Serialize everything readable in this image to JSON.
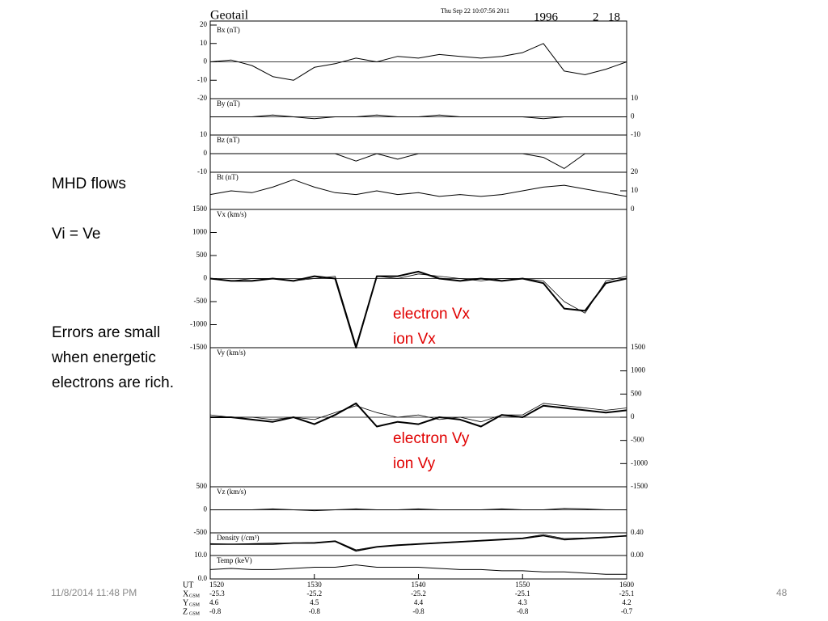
{
  "slide": {
    "notes": [
      "MHD flows",
      "Vi = Ve",
      "Errors are small",
      "when energetic",
      "electrons are rich."
    ],
    "footer_date": "11/8/2014 11:48 PM",
    "page_number": 48,
    "legend_color": "#e00000"
  },
  "plot_header": {
    "mission": "Geotail",
    "timestamp": "Thu Sep 22 10:07:56 2011",
    "year": 1996,
    "month": 2,
    "day": 18
  },
  "orbit": {
    "ut_label": "UT",
    "rows": [
      {
        "label": "X",
        "sub": "GSM",
        "values": [
          -25.3,
          -25.2,
          -25.2,
          -25.1,
          -25.1
        ]
      },
      {
        "label": "Y",
        "sub": "GSM",
        "values": [
          4.6,
          4.5,
          4.4,
          4.3,
          4.2
        ]
      },
      {
        "label": "Z",
        "sub": "GSM",
        "values": [
          -0.8,
          -0.8,
          -0.8,
          -0.8,
          -0.7
        ]
      }
    ]
  },
  "chart_data": [
    {
      "type": "line",
      "ylabel": "Bx (nT)",
      "yaxis": "left",
      "ylim": [
        -20,
        20
      ],
      "yticks": [
        20,
        10,
        0,
        -10,
        -20
      ],
      "xlim": [
        920,
        960
      ],
      "x": [
        920,
        922,
        924,
        926,
        928,
        930,
        932,
        934,
        936,
        938,
        940,
        942,
        944,
        946,
        948,
        950,
        952,
        954,
        956,
        958,
        960
      ],
      "color": "#000000",
      "values": [
        0,
        1,
        -2,
        -8,
        -10,
        -3,
        -1,
        2,
        0,
        3,
        2,
        4,
        3,
        2,
        3,
        5,
        10,
        -5,
        -7,
        -4,
        0
      ]
    },
    {
      "type": "line",
      "ylabel": "By (nT)",
      "yaxis": "right",
      "ylim": [
        -10,
        10
      ],
      "yticks": [
        10,
        0,
        -10
      ],
      "xlim": [
        920,
        960
      ],
      "x": [
        920,
        922,
        924,
        926,
        928,
        930,
        932,
        934,
        936,
        938,
        940,
        942,
        944,
        946,
        948,
        950,
        952,
        954,
        956,
        958,
        960
      ],
      "color": "#000000",
      "values": [
        0,
        0,
        0,
        1,
        0,
        -1,
        0,
        0,
        1,
        0,
        0,
        1,
        0,
        0,
        0,
        0,
        -1,
        0,
        0,
        0,
        0
      ]
    },
    {
      "type": "line",
      "ylabel": "Bz (nT)",
      "yaxis": "left",
      "ylim": [
        -10,
        10
      ],
      "yticks": [
        10,
        0,
        -10
      ],
      "xlim": [
        920,
        960
      ],
      "x": [
        920,
        922,
        924,
        926,
        928,
        930,
        932,
        934,
        936,
        938,
        940,
        942,
        944,
        946,
        948,
        950,
        952,
        954,
        956,
        958,
        960
      ],
      "color": "#000000",
      "values": [
        0,
        0,
        0,
        0,
        0,
        0,
        0,
        -4,
        0,
        -3,
        0,
        0,
        0,
        0,
        0,
        0,
        -2,
        -8,
        0,
        0,
        0
      ]
    },
    {
      "type": "line",
      "ylabel": "Bt (nT)",
      "yaxis": "right",
      "ylim": [
        0,
        20
      ],
      "yticks": [
        20,
        10,
        0
      ],
      "xlim": [
        920,
        960
      ],
      "x": [
        920,
        922,
        924,
        926,
        928,
        930,
        932,
        934,
        936,
        938,
        940,
        942,
        944,
        946,
        948,
        950,
        952,
        954,
        956,
        958,
        960
      ],
      "color": "#000000",
      "values": [
        8,
        10,
        9,
        12,
        16,
        12,
        9,
        8,
        10,
        8,
        9,
        7,
        8,
        7,
        8,
        10,
        12,
        13,
        11,
        9,
        7
      ]
    },
    {
      "type": "line",
      "ylabel": "Vx (km/s)",
      "yaxis": "left",
      "ylim": [
        -1500,
        1500
      ],
      "yticks": [
        1500,
        1000,
        500,
        0,
        -500,
        -1000,
        -1500
      ],
      "xlim": [
        920,
        960
      ],
      "x": [
        920,
        922,
        924,
        926,
        928,
        930,
        932,
        934,
        936,
        938,
        940,
        942,
        944,
        946,
        948,
        950,
        952,
        954,
        956,
        958,
        960
      ],
      "series": [
        {
          "name": "electron Vx",
          "color": "#000000",
          "line_width": 2,
          "values": [
            0,
            -50,
            -50,
            0,
            -50,
            50,
            0,
            -1500,
            50,
            50,
            150,
            0,
            -50,
            0,
            -50,
            0,
            -100,
            -650,
            -700,
            -100,
            0
          ]
        },
        {
          "name": "ion Vx",
          "color": "#000000",
          "line_width": 0.8,
          "values": [
            0,
            -50,
            0,
            0,
            -50,
            0,
            50,
            -1450,
            50,
            0,
            100,
            50,
            0,
            -50,
            0,
            0,
            -50,
            -500,
            -750,
            -50,
            50
          ]
        }
      ]
    },
    {
      "type": "line",
      "ylabel": "Vy (km/s)",
      "yaxis": "right",
      "ylim": [
        -1500,
        1500
      ],
      "yticks": [
        1500,
        1000,
        500,
        0,
        -500,
        -1000,
        -1500
      ],
      "xlim": [
        920,
        960
      ],
      "x": [
        920,
        922,
        924,
        926,
        928,
        930,
        932,
        934,
        936,
        938,
        940,
        942,
        944,
        946,
        948,
        950,
        952,
        954,
        956,
        958,
        960
      ],
      "series": [
        {
          "name": "electron Vy",
          "color": "#000000",
          "line_width": 2,
          "values": [
            0,
            0,
            -50,
            -100,
            0,
            -150,
            50,
            300,
            -200,
            -100,
            -150,
            0,
            -50,
            -200,
            50,
            0,
            250,
            200,
            150,
            100,
            150
          ]
        },
        {
          "name": "ion Vy",
          "color": "#000000",
          "line_width": 0.8,
          "values": [
            50,
            0,
            0,
            -50,
            0,
            -50,
            100,
            250,
            100,
            0,
            50,
            -50,
            0,
            -100,
            50,
            50,
            300,
            250,
            200,
            150,
            200
          ]
        }
      ]
    },
    {
      "type": "line",
      "ylabel": "Vz (km/s)",
      "yaxis": "left",
      "ylim": [
        -500,
        500
      ],
      "yticks": [
        500,
        0,
        -500
      ],
      "xlim": [
        920,
        960
      ],
      "x": [
        920,
        922,
        924,
        926,
        928,
        930,
        932,
        934,
        936,
        938,
        940,
        942,
        944,
        946,
        948,
        950,
        952,
        954,
        956,
        958,
        960
      ],
      "color": "#000000",
      "values": [
        0,
        0,
        0,
        20,
        0,
        -20,
        0,
        20,
        0,
        0,
        20,
        0,
        0,
        0,
        20,
        0,
        0,
        30,
        20,
        0,
        0
      ]
    },
    {
      "type": "line",
      "ylabel": "Density (/cm³)",
      "yaxis": "right",
      "ylim": [
        0,
        0.4
      ],
      "yticks": [
        {
          "value": 0.4,
          "label": "0.40"
        },
        {
          "value": 0,
          "label": "0.00"
        }
      ],
      "xlim": [
        920,
        960
      ],
      "x": [
        920,
        922,
        924,
        926,
        928,
        930,
        932,
        934,
        936,
        938,
        940,
        942,
        944,
        946,
        948,
        950,
        952,
        954,
        956,
        958,
        960
      ],
      "series": [
        {
          "color": "#000000",
          "line_width": 1.6,
          "values": [
            0.2,
            0.2,
            0.2,
            0.2,
            0.22,
            0.22,
            0.25,
            0.08,
            0.15,
            0.18,
            0.2,
            0.22,
            0.24,
            0.26,
            0.28,
            0.3,
            0.35,
            0.28,
            0.3,
            0.32,
            0.35
          ]
        },
        {
          "color": "#000000",
          "line_width": 0.8,
          "values": [
            0.21,
            0.2,
            0.21,
            0.22,
            0.22,
            0.23,
            0.26,
            0.1,
            0.16,
            0.19,
            0.21,
            0.23,
            0.25,
            0.27,
            0.29,
            0.31,
            0.37,
            0.3,
            0.31,
            0.33,
            0.34
          ]
        }
      ]
    },
    {
      "type": "line",
      "ylabel": "Temp (keV)",
      "yaxis": "left",
      "ylim": [
        0,
        10
      ],
      "yticks": [
        {
          "value": 10,
          "label": "10.0"
        },
        {
          "value": 0,
          "label": "0.0"
        }
      ],
      "xlim": [
        920,
        960
      ],
      "x": [
        920,
        922,
        924,
        926,
        928,
        930,
        932,
        934,
        936,
        938,
        940,
        942,
        944,
        946,
        948,
        950,
        952,
        954,
        956,
        958,
        960
      ],
      "xticks": [
        {
          "value": 920,
          "label": "1520"
        },
        {
          "value": 930,
          "label": "1530"
        },
        {
          "value": 940,
          "label": "1540"
        },
        {
          "value": 950,
          "label": "1550"
        },
        {
          "value": 960,
          "label": "1600"
        }
      ],
      "color": "#000000",
      "values": [
        4,
        4.5,
        4,
        4,
        4.5,
        5,
        5,
        6,
        5,
        5,
        5,
        4.5,
        4,
        4,
        3.5,
        3.5,
        3,
        3,
        2.5,
        2,
        2
      ]
    }
  ]
}
